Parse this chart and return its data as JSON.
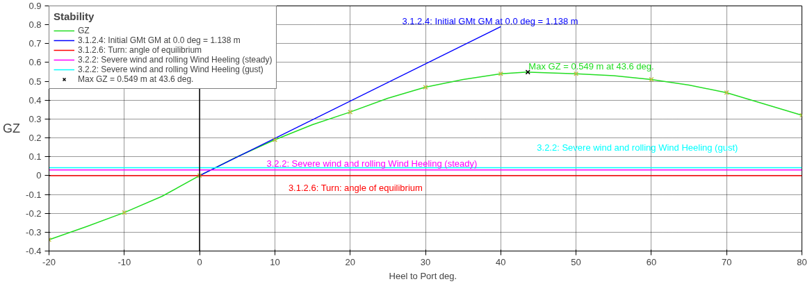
{
  "chart_data": {
    "type": "line",
    "xlabel": "Heel to Port   deg.",
    "ylabel": "GZ",
    "legend_title": "Stability",
    "xlim": [
      -20,
      80
    ],
    "xticks": [
      -20,
      -10,
      0,
      10,
      20,
      30,
      40,
      50,
      60,
      70,
      80
    ],
    "ylim": [
      -0.4,
      0.9
    ],
    "yticks": [
      -0.4,
      -0.3,
      -0.2,
      -0.1,
      {
        "value": 0,
        "label": "0"
      },
      0.1,
      0.2,
      0.3,
      0.4,
      0.5,
      0.6,
      0.7,
      0.8,
      0.9
    ],
    "grid": true,
    "legend": "top left",
    "series": [
      {
        "name": "GZ",
        "color": "#22dd22",
        "x": [
          -20,
          -15,
          -10,
          -5,
          0,
          5,
          10,
          15,
          20,
          25,
          30,
          35,
          40,
          43.6,
          50,
          55,
          60,
          65,
          70,
          75,
          80
        ],
        "values": [
          -0.34,
          -0.27,
          -0.196,
          -0.11,
          0,
          0.1,
          0.19,
          0.27,
          0.337,
          0.41,
          0.469,
          0.51,
          0.54,
          0.549,
          0.54,
          0.53,
          0.51,
          0.48,
          0.44,
          0.38,
          0.32
        ]
      },
      {
        "name": "3.1.2.4: Initial GMt GM at 0.0 deg = 1.138 m",
        "color": "#0000ff",
        "x": [
          0,
          40
        ],
        "values": [
          0,
          0.79
        ]
      },
      {
        "name": "3.1.2.6: Turn: angle of equilibrium",
        "color": "#ff0000",
        "x": [
          -20,
          80
        ],
        "values": [
          0,
          0
        ]
      },
      {
        "name": "3.2.2: Severe wind and rolling Wind Heeling (steady)",
        "color": "#ff00ff",
        "x": [
          -20,
          80
        ],
        "values": [
          0.03,
          0.03
        ]
      },
      {
        "name": "3.2.2: Severe wind and rolling Wind Heeling (gust)",
        "color": "#00ffff",
        "x": [
          -20,
          80
        ],
        "values": [
          0.042,
          0.042
        ]
      },
      {
        "type": "scatter",
        "marker": "cross",
        "color": "#c0c040",
        "x": [
          -20,
          -10,
          0,
          10,
          20,
          30,
          40,
          50,
          60,
          70,
          80
        ],
        "values": [
          -0.34,
          -0.196,
          0,
          0.19,
          0.337,
          0.469,
          0.54,
          0.54,
          0.51,
          0.44,
          0.32
        ]
      },
      {
        "name": "Max GZ = 0.549 m at 43.6 deg.",
        "type": "scatter",
        "marker": "cross",
        "color": "#000000",
        "x": [
          43.6
        ],
        "values": [
          0.549
        ]
      }
    ],
    "ref_lines": [
      {
        "axis": "x",
        "value": 0,
        "color": "#000000"
      }
    ],
    "annotations": [
      "3.1.2.4: Initial GMt GM at 0.0 deg = 1.138 m",
      "3.2.2: Severe wind and rolling Wind Heeling (steady)",
      "3.2.2: Severe wind and rolling Wind Heeling (gust)",
      "3.1.2.6: Turn: angle of equilibrium",
      "Max GZ = 0.549 m at 43.6 deg."
    ]
  }
}
